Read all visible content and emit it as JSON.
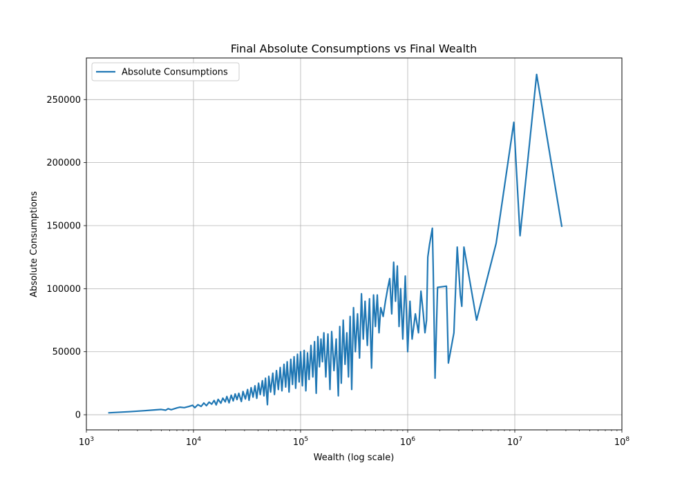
{
  "chart_data": {
    "type": "line",
    "title": "Final Absolute Consumptions vs Final Wealth",
    "xlabel": "Wealth (log scale)",
    "ylabel": "Absolute Consumptions",
    "xscale": "log",
    "xlim": [
      1000,
      100000000
    ],
    "ylim": [
      -12000,
      283000
    ],
    "x_ticks": [
      {
        "value": 1000,
        "base": "10",
        "exp": "3"
      },
      {
        "value": 10000,
        "base": "10",
        "exp": "4"
      },
      {
        "value": 100000,
        "base": "10",
        "exp": "5"
      },
      {
        "value": 1000000,
        "base": "10",
        "exp": "6"
      },
      {
        "value": 10000000,
        "base": "10",
        "exp": "7"
      },
      {
        "value": 100000000,
        "base": "10",
        "exp": "8"
      }
    ],
    "y_ticks": [
      {
        "value": 0,
        "label": "0"
      },
      {
        "value": 50000,
        "label": "50000"
      },
      {
        "value": 100000,
        "label": "100000"
      },
      {
        "value": 150000,
        "label": "150000"
      },
      {
        "value": 200000,
        "label": "200000"
      },
      {
        "value": 250000,
        "label": "250000"
      }
    ],
    "grid": true,
    "legend": {
      "position": "top-left",
      "entries": [
        "Absolute Consumptions"
      ]
    },
    "series": [
      {
        "name": "Absolute Consumptions",
        "color": "#1f77b4",
        "points": [
          [
            1600,
            1500
          ],
          [
            2500,
            2400
          ],
          [
            3500,
            3200
          ],
          [
            4300,
            3800
          ],
          [
            5000,
            4200
          ],
          [
            5500,
            3600
          ],
          [
            5800,
            4800
          ],
          [
            6200,
            4000
          ],
          [
            7000,
            5400
          ],
          [
            7500,
            6000
          ],
          [
            8200,
            5600
          ],
          [
            9000,
            6500
          ],
          [
            9800,
            7500
          ],
          [
            10300,
            5600
          ],
          [
            11000,
            8000
          ],
          [
            11800,
            6600
          ],
          [
            12500,
            9300
          ],
          [
            13200,
            7200
          ],
          [
            14000,
            10000
          ],
          [
            14800,
            8400
          ],
          [
            15600,
            11300
          ],
          [
            16300,
            7800
          ],
          [
            17000,
            12200
          ],
          [
            18000,
            9200
          ],
          [
            18800,
            13200
          ],
          [
            19800,
            10200
          ],
          [
            20500,
            14500
          ],
          [
            21500,
            9500
          ],
          [
            22500,
            15500
          ],
          [
            23500,
            11000
          ],
          [
            24500,
            16500
          ],
          [
            25500,
            12000
          ],
          [
            26500,
            17000
          ],
          [
            28000,
            10500
          ],
          [
            29000,
            18500
          ],
          [
            30500,
            12500
          ],
          [
            32000,
            20000
          ],
          [
            33000,
            11500
          ],
          [
            34500,
            21500
          ],
          [
            36000,
            14000
          ],
          [
            37500,
            23000
          ],
          [
            39000,
            13000
          ],
          [
            40500,
            25000
          ],
          [
            42000,
            16000
          ],
          [
            44000,
            27000
          ],
          [
            45500,
            15000
          ],
          [
            47000,
            29000
          ],
          [
            49000,
            8000
          ],
          [
            50500,
            30500
          ],
          [
            52500,
            18000
          ],
          [
            55000,
            33000
          ],
          [
            57000,
            16000
          ],
          [
            59500,
            35000
          ],
          [
            62000,
            20000
          ],
          [
            64500,
            37500
          ],
          [
            67000,
            19000
          ],
          [
            70000,
            40000
          ],
          [
            72500,
            22000
          ],
          [
            75000,
            42000
          ],
          [
            78000,
            18000
          ],
          [
            81000,
            44000
          ],
          [
            84000,
            24000
          ],
          [
            87000,
            46000
          ],
          [
            90000,
            21000
          ],
          [
            93500,
            48000
          ],
          [
            97000,
            26000
          ],
          [
            100000,
            50000
          ],
          [
            104000,
            23000
          ],
          [
            108000,
            51000
          ],
          [
            112000,
            19000
          ],
          [
            116000,
            49000
          ],
          [
            120000,
            28000
          ],
          [
            125000,
            55000
          ],
          [
            130000,
            30000
          ],
          [
            135000,
            58000
          ],
          [
            140000,
            17000
          ],
          [
            145000,
            62000
          ],
          [
            150000,
            38000
          ],
          [
            155000,
            60000
          ],
          [
            160000,
            42000
          ],
          [
            165000,
            65000
          ],
          [
            172000,
            30000
          ],
          [
            180000,
            64000
          ],
          [
            188000,
            20000
          ],
          [
            195000,
            66000
          ],
          [
            205000,
            35000
          ],
          [
            215000,
            60000
          ],
          [
            225000,
            15000
          ],
          [
            232000,
            70000
          ],
          [
            240000,
            25000
          ],
          [
            250000,
            75000
          ],
          [
            260000,
            40000
          ],
          [
            270000,
            65000
          ],
          [
            280000,
            30000
          ],
          [
            290000,
            78000
          ],
          [
            300000,
            20000
          ],
          [
            312000,
            85000
          ],
          [
            325000,
            50000
          ],
          [
            340000,
            80000
          ],
          [
            355000,
            45000
          ],
          [
            370000,
            96000
          ],
          [
            385000,
            60000
          ],
          [
            400000,
            90000
          ],
          [
            420000,
            55000
          ],
          [
            440000,
            92000
          ],
          [
            460000,
            37000
          ],
          [
            480000,
            95000
          ],
          [
            500000,
            70000
          ],
          [
            520000,
            95000
          ],
          [
            540000,
            65000
          ],
          [
            560000,
            85000
          ],
          [
            590000,
            78000
          ],
          [
            620000,
            90000
          ],
          [
            650000,
            100000
          ],
          [
            680000,
            108000
          ],
          [
            710000,
            80000
          ],
          [
            740000,
            121000
          ],
          [
            770000,
            90000
          ],
          [
            800000,
            118000
          ],
          [
            830000,
            70000
          ],
          [
            860000,
            100000
          ],
          [
            900000,
            60000
          ],
          [
            950000,
            110000
          ],
          [
            1000000,
            50000
          ],
          [
            1050000,
            90000
          ],
          [
            1100000,
            60000
          ],
          [
            1180000,
            80000
          ],
          [
            1260000,
            65000
          ],
          [
            1330000,
            98000
          ],
          [
            1400000,
            80000
          ],
          [
            1450000,
            65000
          ],
          [
            1500000,
            75000
          ],
          [
            1540000,
            125000
          ],
          [
            1600000,
            135000
          ],
          [
            1700000,
            148000
          ],
          [
            1730000,
            117000
          ],
          [
            1800000,
            29000
          ],
          [
            1900000,
            101000
          ],
          [
            2300000,
            102000
          ],
          [
            2400000,
            41000
          ],
          [
            2700000,
            65000
          ],
          [
            2900000,
            133000
          ],
          [
            3100000,
            95000
          ],
          [
            3200000,
            86000
          ],
          [
            3350000,
            133000
          ],
          [
            4400000,
            75000
          ],
          [
            6700000,
            136000
          ],
          [
            9800000,
            232000
          ],
          [
            11200000,
            142000
          ],
          [
            16000000,
            270000
          ],
          [
            27500000,
            149000
          ]
        ]
      }
    ]
  }
}
